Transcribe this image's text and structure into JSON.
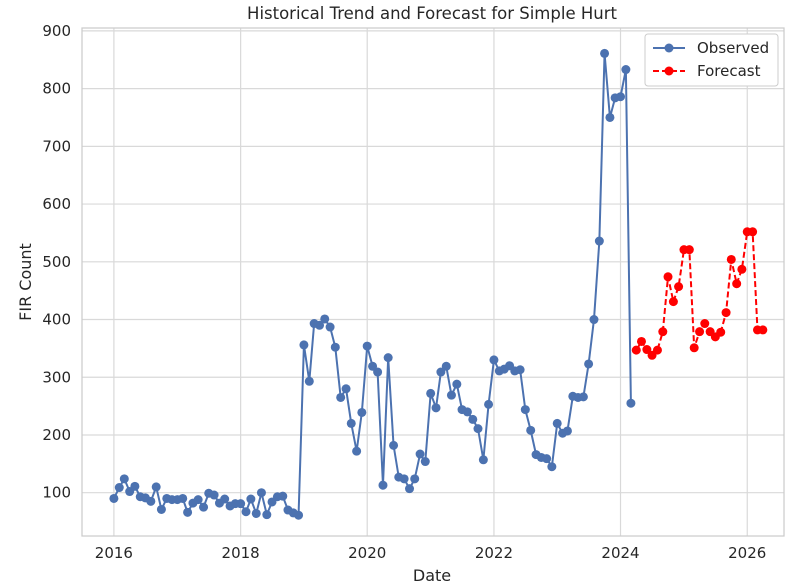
{
  "chart_data": {
    "type": "line",
    "title": "Historical Trend and Forecast for Simple Hurt",
    "xlabel": "Date",
    "ylabel": "FIR Count",
    "xlim": [
      "2015-07-01",
      "2026-08-01"
    ],
    "ylim": [
      25,
      905
    ],
    "x_ticks": [
      "2016",
      "2018",
      "2020",
      "2022",
      "2024",
      "2026"
    ],
    "y_ticks": [
      100,
      200,
      300,
      400,
      500,
      600,
      700,
      800,
      900
    ],
    "grid": true,
    "legend_position": "top-right",
    "colors": {
      "observed": "#4c72b0",
      "forecast": "#ff0000"
    },
    "series": [
      {
        "name": "Observed",
        "style": "solid-line-circle-markers",
        "x": [
          "2016-01",
          "2016-02",
          "2016-03",
          "2016-04",
          "2016-05",
          "2016-06",
          "2016-07",
          "2016-08",
          "2016-09",
          "2016-10",
          "2016-11",
          "2016-12",
          "2017-01",
          "2017-02",
          "2017-03",
          "2017-04",
          "2017-05",
          "2017-06",
          "2017-07",
          "2017-08",
          "2017-09",
          "2017-10",
          "2017-11",
          "2017-12",
          "2018-01",
          "2018-02",
          "2018-03",
          "2018-04",
          "2018-05",
          "2018-06",
          "2018-07",
          "2018-08",
          "2018-09",
          "2018-10",
          "2018-11",
          "2018-12",
          "2019-01",
          "2019-02",
          "2019-03",
          "2019-04",
          "2019-05",
          "2019-06",
          "2019-07",
          "2019-08",
          "2019-09",
          "2019-10",
          "2019-11",
          "2019-12",
          "2020-01",
          "2020-02",
          "2020-03",
          "2020-04",
          "2020-05",
          "2020-06",
          "2020-07",
          "2020-08",
          "2020-09",
          "2020-10",
          "2020-11",
          "2020-12",
          "2021-01",
          "2021-02",
          "2021-03",
          "2021-04",
          "2021-05",
          "2021-06",
          "2021-07",
          "2021-08",
          "2021-09",
          "2021-10",
          "2021-11",
          "2021-12",
          "2022-01",
          "2022-02",
          "2022-03",
          "2022-04",
          "2022-05",
          "2022-06",
          "2022-07",
          "2022-08",
          "2022-09",
          "2022-10",
          "2022-11",
          "2022-12",
          "2023-01",
          "2023-02",
          "2023-03",
          "2023-04",
          "2023-05",
          "2023-06",
          "2023-07",
          "2023-08",
          "2023-09",
          "2023-10",
          "2023-11",
          "2023-12",
          "2024-01",
          "2024-02",
          "2024-03"
        ],
        "values": [
          90,
          109,
          124,
          102,
          111,
          93,
          91,
          85,
          110,
          71,
          90,
          88,
          88,
          90,
          66,
          82,
          88,
          75,
          99,
          96,
          82,
          89,
          77,
          81,
          81,
          67,
          89,
          64,
          100,
          62,
          84,
          93,
          94,
          70,
          65,
          61,
          356,
          293,
          393,
          390,
          401,
          387,
          352,
          265,
          280,
          220,
          172,
          239,
          354,
          319,
          309,
          113,
          334,
          182,
          127,
          124,
          107,
          124,
          167,
          154,
          272,
          247,
          309,
          319,
          269,
          288,
          244,
          240,
          227,
          211,
          157,
          253,
          330,
          311,
          314,
          320,
          311,
          313,
          244,
          208,
          166,
          161,
          159,
          145,
          220,
          203,
          207,
          267,
          265,
          266,
          323,
          400,
          536,
          861,
          750,
          784,
          786,
          833,
          255
        ]
      },
      {
        "name": "Forecast",
        "style": "dashed-line-circle-markers",
        "x": [
          "2024-04",
          "2024-05",
          "2024-06",
          "2024-07",
          "2024-08",
          "2024-09",
          "2024-10",
          "2024-11",
          "2024-12",
          "2025-01",
          "2025-02",
          "2025-03",
          "2025-04",
          "2025-05",
          "2025-06",
          "2025-07",
          "2025-08",
          "2025-09",
          "2025-10",
          "2025-11",
          "2025-12",
          "2026-01",
          "2026-02",
          "2026-03",
          "2026-04"
        ],
        "values": [
          347,
          362,
          348,
          338,
          347,
          379,
          474,
          431,
          457,
          521,
          521,
          351,
          379,
          393,
          379,
          370,
          378,
          412,
          504,
          462,
          487,
          552,
          552,
          382,
          382
        ]
      }
    ]
  }
}
